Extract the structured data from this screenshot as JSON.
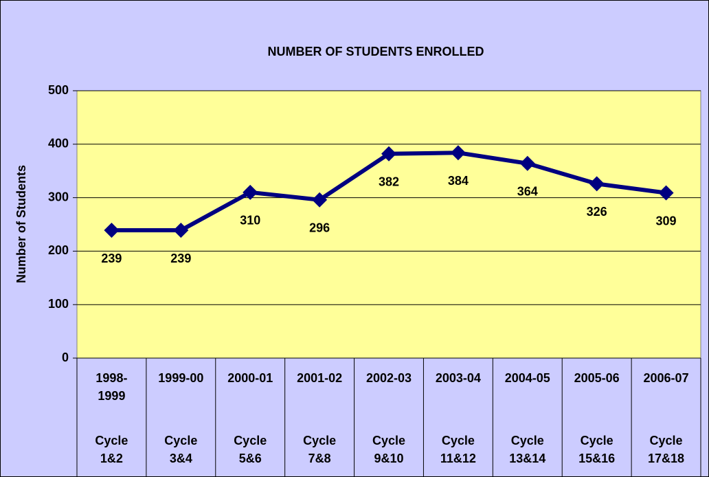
{
  "chart_data": {
    "type": "line",
    "title": "NUMBER OF STUDENTS ENROLLED",
    "y_label": "Number of Students",
    "categories": [
      "1998-1999",
      "1999-00",
      "2000-01",
      "2001-02",
      "2002-03",
      "2003-04",
      "2004-05",
      "2005-06",
      "2006-07"
    ],
    "cycles": [
      "Cycle 1&2",
      "Cycle 3&4",
      "Cycle 5&6",
      "Cycle 7&8",
      "Cycle 9&10",
      "Cycle 11&12",
      "Cycle 13&14",
      "Cycle 15&16",
      "Cycle 17&18"
    ],
    "values": [
      239,
      239,
      310,
      296,
      382,
      384,
      364,
      326,
      309
    ],
    "color": "#000080",
    "ylim": [
      0,
      500
    ],
    "yticks": [
      0,
      100,
      200,
      300,
      400,
      500
    ],
    "grid": true
  }
}
